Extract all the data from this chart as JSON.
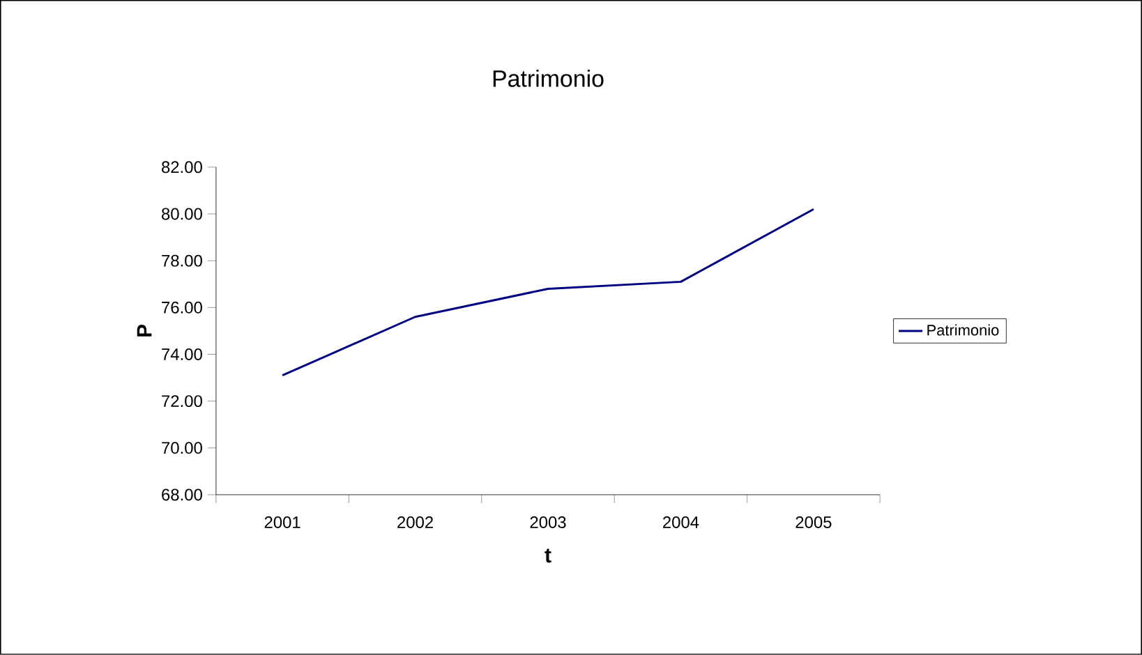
{
  "chart_data": {
    "type": "line",
    "title": "Patrimonio",
    "xlabel": "t",
    "ylabel": "P",
    "categories": [
      "2001",
      "2002",
      "2003",
      "2004",
      "2005"
    ],
    "series": [
      {
        "name": "Patrimonio",
        "color": "#000080",
        "values": [
          73.1,
          75.6,
          76.8,
          77.1,
          80.2
        ]
      }
    ],
    "ylim": [
      68,
      82
    ],
    "yticks": [
      {
        "value": 68,
        "label": "68.00"
      },
      {
        "value": 70,
        "label": "70.00"
      },
      {
        "value": 72,
        "label": "72.00"
      },
      {
        "value": 74,
        "label": "74.00"
      },
      {
        "value": 76,
        "label": "76.00"
      },
      {
        "value": 78,
        "label": "78.00"
      },
      {
        "value": 80,
        "label": "80.00"
      },
      {
        "value": 82,
        "label": "82.00"
      }
    ],
    "legend": "right",
    "grid": false,
    "marker": "none",
    "line_style": "solid"
  }
}
